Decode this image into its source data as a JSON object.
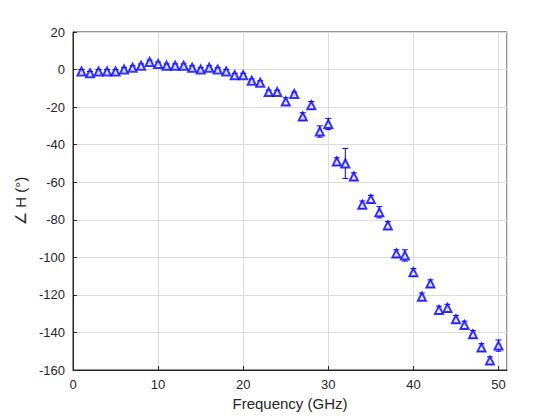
{
  "chart_data": {
    "type": "scatter",
    "x_label": "Frequency (GHz)",
    "y_label": "∠ H (°)",
    "x": [
      1,
      2,
      3,
      4,
      5,
      6,
      7,
      8,
      9,
      10,
      11,
      12,
      13,
      14,
      15,
      16,
      17,
      18,
      19,
      20,
      21,
      22,
      23,
      24,
      25,
      26,
      27,
      28,
      29,
      30,
      31,
      32,
      33,
      34,
      35,
      36,
      37,
      38,
      39,
      40,
      41,
      42,
      43,
      44,
      45,
      46,
      47,
      48,
      49,
      50
    ],
    "series": [
      {
        "color": "#0000ff",
        "marker": "triangle",
        "values": [
          -1,
          -2,
          -1,
          -1,
          -1,
          0,
          1,
          2,
          4,
          3,
          2,
          2,
          2,
          1,
          0,
          1,
          0,
          -1,
          -3,
          -3,
          -6,
          -7,
          -12,
          -12,
          -17,
          -13,
          -25,
          -19,
          -33,
          -29,
          -49,
          -50,
          -57,
          -72,
          -69,
          -76,
          -83,
          -98,
          -99,
          -108,
          -121,
          -114,
          -128,
          -127,
          -133,
          -136,
          -141,
          -148,
          -155,
          -147
        ],
        "errors": [
          1,
          1,
          1,
          1,
          1,
          1,
          1,
          1,
          1,
          1,
          1,
          1,
          1,
          1,
          1,
          1,
          1,
          1,
          1,
          1,
          1,
          1,
          1,
          1,
          2,
          1,
          2,
          2,
          3,
          3,
          2,
          8,
          2,
          2,
          2,
          3,
          2,
          2,
          3,
          2,
          2,
          2,
          2,
          2,
          2,
          2,
          2,
          2,
          2,
          3
        ]
      }
    ],
    "xlim": [
      0,
      51
    ],
    "xticks": [
      0,
      10,
      20,
      30,
      40,
      50
    ],
    "ylim": [
      -160,
      20
    ],
    "yticks": [
      -160,
      -140,
      -120,
      -100,
      -80,
      -60,
      -40,
      -20,
      0,
      20
    ],
    "grid": true
  }
}
